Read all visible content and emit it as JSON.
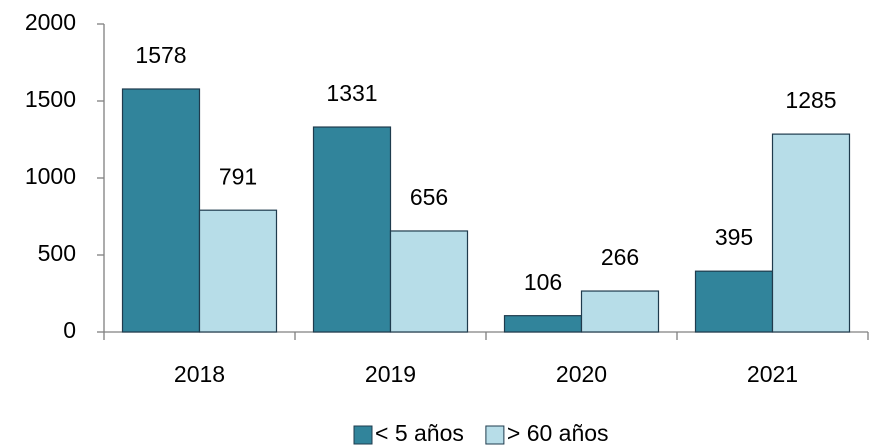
{
  "chart_data": {
    "type": "bar",
    "categories": [
      "2018",
      "2019",
      "2020",
      "2021"
    ],
    "series": [
      {
        "name": "< 5 años",
        "color": "#31849b",
        "values": [
          1578,
          1331,
          106,
          395
        ]
      },
      {
        "name": "> 60 años",
        "color": "#b7dde8",
        "values": [
          791,
          656,
          266,
          1285
        ]
      }
    ],
    "ylim": [
      0,
      2000
    ],
    "yticks": [
      0,
      500,
      1000,
      1500,
      2000
    ],
    "grid": false,
    "legend": "bottom"
  }
}
